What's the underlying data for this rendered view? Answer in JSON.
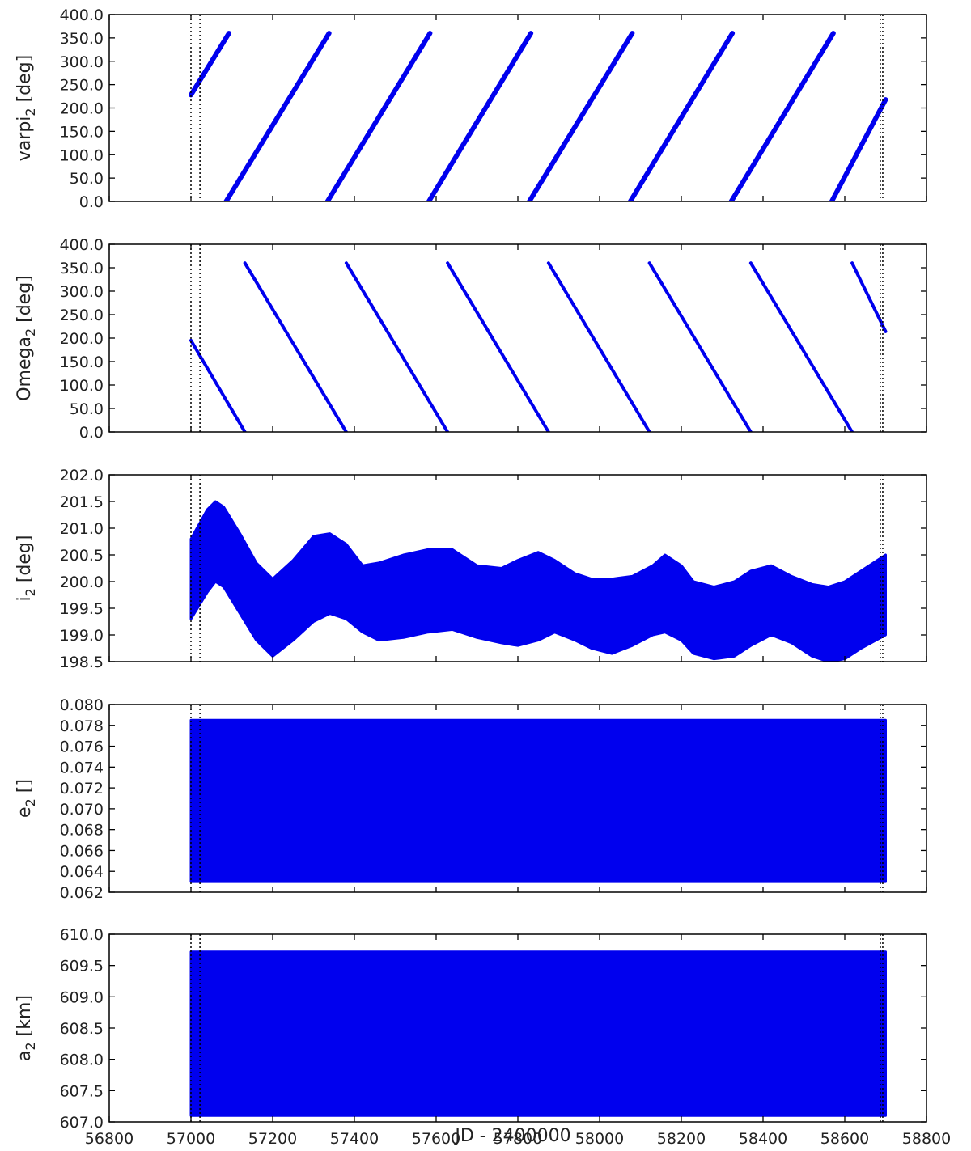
{
  "colors": {
    "series": "#0000ee",
    "axis": "#000000",
    "vline": "#000000"
  },
  "xaxis": {
    "label": "JD - 2400000",
    "range": [
      56800,
      58800
    ],
    "ticks": [
      56800,
      57000,
      57200,
      57400,
      57600,
      57800,
      58000,
      58200,
      58400,
      58600,
      58800
    ],
    "tick_labels": [
      "56800",
      "57000",
      "57200",
      "57400",
      "57600",
      "57800",
      "58000",
      "58200",
      "58400",
      "58600",
      "58800"
    ]
  },
  "vlines": [
    57000,
    57022,
    58687,
    58693
  ],
  "chart_data": [
    {
      "type": "line",
      "ylabel_main": "varpi",
      "ylabel_sub": "2",
      "ylabel_unit": " [deg]",
      "ylim": [
        0,
        400
      ],
      "yticks": [
        0,
        50,
        100,
        150,
        200,
        250,
        300,
        350,
        400
      ],
      "ytick_labels": [
        "0.0",
        "50.0",
        "100.0",
        "150.0",
        "200.0",
        "250.0",
        "300.0",
        "350.0",
        "400.0"
      ],
      "series_segments": [
        {
          "x": [
            57000,
            57093
          ],
          "y": [
            228,
            360
          ],
          "width": 6
        },
        {
          "x": [
            57086,
            57338
          ],
          "y": [
            0,
            360
          ],
          "width": 6
        },
        {
          "x": [
            57334,
            57585
          ],
          "y": [
            0,
            360
          ],
          "width": 6
        },
        {
          "x": [
            57582,
            57832
          ],
          "y": [
            0,
            360
          ],
          "width": 6
        },
        {
          "x": [
            57828,
            58080
          ],
          "y": [
            0,
            360
          ],
          "width": 6
        },
        {
          "x": [
            58075,
            58325
          ],
          "y": [
            0,
            360
          ],
          "width": 6
        },
        {
          "x": [
            58322,
            58572
          ],
          "y": [
            0,
            360
          ],
          "width": 6
        },
        {
          "x": [
            58568,
            58700
          ],
          "y": [
            0,
            218
          ],
          "width": 6
        }
      ]
    },
    {
      "type": "line",
      "ylabel_main": "Omega",
      "ylabel_sub": "2",
      "ylabel_unit": " [deg]",
      "ylim": [
        0,
        400
      ],
      "yticks": [
        0,
        50,
        100,
        150,
        200,
        250,
        300,
        350,
        400
      ],
      "ytick_labels": [
        "0.0",
        "50.0",
        "100.0",
        "150.0",
        "200.0",
        "250.0",
        "300.0",
        "350.0",
        "400.0"
      ],
      "series_segments": [
        {
          "x": [
            57000,
            57132
          ],
          "y": [
            195,
            0
          ],
          "width": 4
        },
        {
          "x": [
            57132,
            57380
          ],
          "y": [
            360,
            0
          ],
          "width": 4
        },
        {
          "x": [
            57380,
            57628
          ],
          "y": [
            360,
            0
          ],
          "width": 4
        },
        {
          "x": [
            57628,
            57875
          ],
          "y": [
            360,
            0
          ],
          "width": 4
        },
        {
          "x": [
            57875,
            58122
          ],
          "y": [
            360,
            0
          ],
          "width": 4
        },
        {
          "x": [
            58122,
            58370
          ],
          "y": [
            360,
            0
          ],
          "width": 4
        },
        {
          "x": [
            58370,
            58618
          ],
          "y": [
            360,
            0
          ],
          "width": 4
        },
        {
          "x": [
            58618,
            58700
          ],
          "y": [
            360,
            214
          ],
          "width": 4
        }
      ]
    },
    {
      "type": "area",
      "ylabel_main": "i",
      "ylabel_sub": "2",
      "ylabel_unit": " [deg]",
      "ylim": [
        198.5,
        202.0
      ],
      "yticks": [
        198.5,
        199.0,
        199.5,
        200.0,
        200.5,
        201.0,
        201.5,
        202.0
      ],
      "ytick_labels": [
        "198.5",
        "199.0",
        "199.5",
        "200.0",
        "200.5",
        "201.0",
        "201.5",
        "202.0"
      ],
      "x": [
        57000,
        57040,
        57060,
        57080,
        57120,
        57160,
        57200,
        57250,
        57300,
        57340,
        57380,
        57420,
        57460,
        57520,
        57580,
        57640,
        57700,
        57760,
        57800,
        57850,
        57890,
        57940,
        57980,
        58030,
        58080,
        58130,
        58160,
        58200,
        58230,
        58280,
        58330,
        58370,
        58420,
        58470,
        58520,
        58560,
        58600,
        58640,
        58700
      ],
      "upper": [
        200.8,
        201.35,
        201.5,
        201.4,
        200.9,
        200.35,
        200.05,
        200.4,
        200.85,
        200.9,
        200.7,
        200.3,
        200.35,
        200.5,
        200.6,
        200.6,
        200.3,
        200.25,
        200.4,
        200.55,
        200.4,
        200.15,
        200.05,
        200.05,
        200.1,
        200.3,
        200.5,
        200.3,
        200.0,
        199.9,
        200.0,
        200.2,
        200.3,
        200.1,
        199.95,
        199.9,
        200.0,
        200.2,
        200.5
      ],
      "lower": [
        199.3,
        199.8,
        200.0,
        199.9,
        199.4,
        198.9,
        198.6,
        198.9,
        199.25,
        199.4,
        199.3,
        199.05,
        198.9,
        198.95,
        199.05,
        199.1,
        198.95,
        198.85,
        198.8,
        198.9,
        199.05,
        198.9,
        198.75,
        198.65,
        198.8,
        199.0,
        199.05,
        198.9,
        198.65,
        198.55,
        198.6,
        198.8,
        199.0,
        198.85,
        198.6,
        198.5,
        198.55,
        198.75,
        199.0
      ]
    },
    {
      "type": "area",
      "ylabel_main": "e",
      "ylabel_sub": "2",
      "ylabel_unit": " []",
      "ylim": [
        0.062,
        0.08
      ],
      "yticks": [
        0.062,
        0.064,
        0.066,
        0.068,
        0.07,
        0.072,
        0.074,
        0.076,
        0.078,
        0.08
      ],
      "ytick_labels": [
        "0.062",
        "0.064",
        "0.066",
        "0.068",
        "0.070",
        "0.072",
        "0.074",
        "0.076",
        "0.078",
        "0.080"
      ],
      "x": [
        57000,
        58700
      ],
      "upper": [
        0.0785,
        0.0785
      ],
      "lower": [
        0.063,
        0.063
      ]
    },
    {
      "type": "area",
      "ylabel_main": "a",
      "ylabel_sub": "2",
      "ylabel_unit": " [km]",
      "ylim": [
        607.0,
        610.0
      ],
      "yticks": [
        607.0,
        607.5,
        608.0,
        608.5,
        609.0,
        609.5,
        610.0
      ],
      "ytick_labels": [
        "607.0",
        "607.5",
        "608.0",
        "608.5",
        "609.0",
        "609.5",
        "610.0"
      ],
      "x": [
        57000,
        58700
      ],
      "upper": [
        609.72,
        609.72
      ],
      "lower": [
        607.1,
        607.1
      ]
    }
  ]
}
